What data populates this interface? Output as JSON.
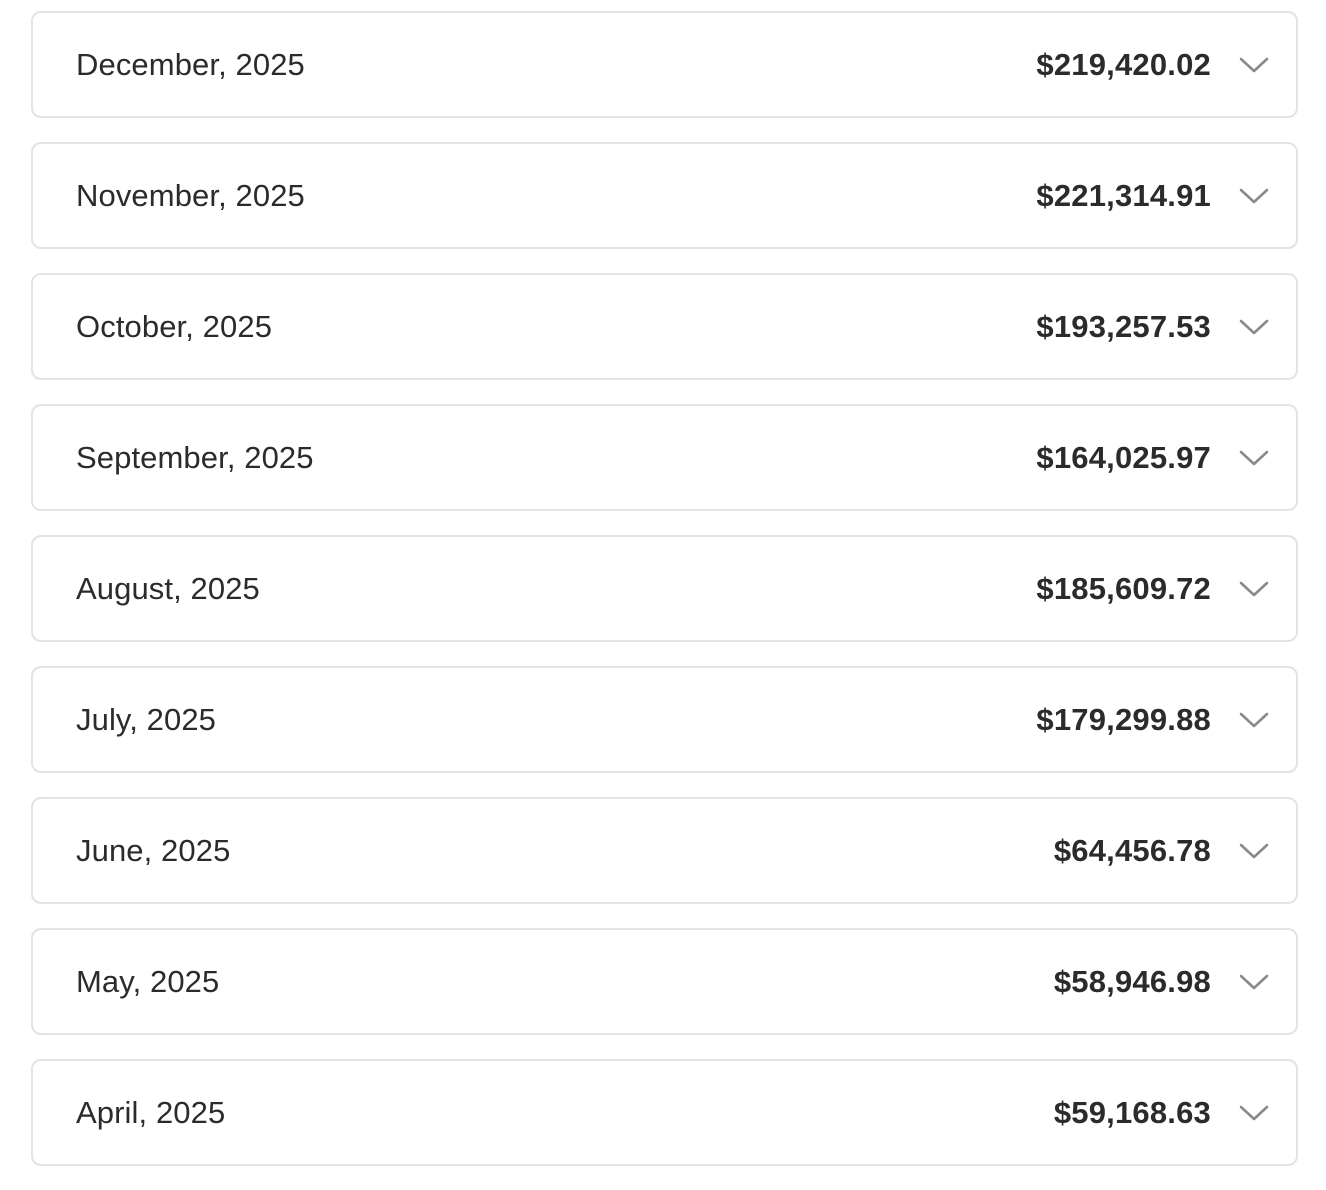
{
  "colors": {
    "border": "#e3e3e3",
    "text": "#2b2b2b",
    "chevron": "#8a8a8a",
    "background": "#ffffff"
  },
  "months": [
    {
      "label": "December, 2025",
      "amount": "$219,420.02",
      "icon": "chevron-down-icon"
    },
    {
      "label": "November, 2025",
      "amount": "$221,314.91",
      "icon": "chevron-down-icon"
    },
    {
      "label": "October, 2025",
      "amount": "$193,257.53",
      "icon": "chevron-down-icon"
    },
    {
      "label": "September, 2025",
      "amount": "$164,025.97",
      "icon": "chevron-down-icon"
    },
    {
      "label": "August, 2025",
      "amount": "$185,609.72",
      "icon": "chevron-down-icon"
    },
    {
      "label": "July, 2025",
      "amount": "$179,299.88",
      "icon": "chevron-down-icon"
    },
    {
      "label": "June, 2025",
      "amount": "$64,456.78",
      "icon": "chevron-down-icon"
    },
    {
      "label": "May, 2025",
      "amount": "$58,946.98",
      "icon": "chevron-down-icon"
    },
    {
      "label": "April, 2025",
      "amount": "$59,168.63",
      "icon": "chevron-down-icon"
    }
  ]
}
